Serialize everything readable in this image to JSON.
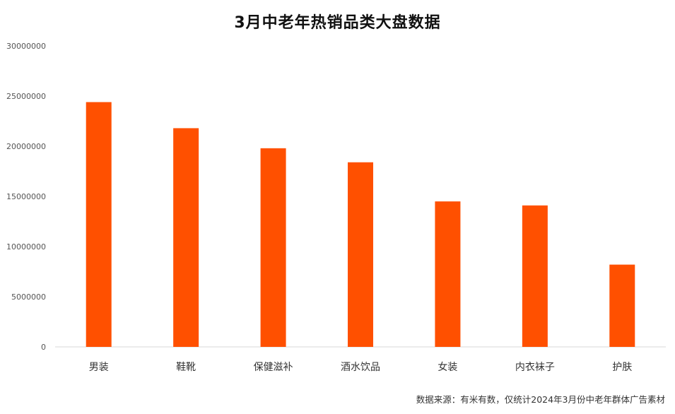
{
  "chart_data": {
    "type": "bar",
    "title": "3月中老年热销品类大盘数据",
    "xlabel": "",
    "ylabel": "",
    "categories": [
      "男装",
      "鞋靴",
      "保健滋补",
      "酒水饮品",
      "女装",
      "内衣袜子",
      "护肤"
    ],
    "values": [
      24400000,
      21800000,
      19800000,
      18400000,
      14500000,
      14100000,
      8200000
    ],
    "ylim": [
      0,
      30000000
    ],
    "yticks": [
      "0",
      "5000000",
      "10000000",
      "15000000",
      "20000000",
      "25000000",
      "30000000"
    ],
    "grid": false,
    "legend": "none",
    "bar_color": "#FF5000"
  },
  "source_note": "数据来源：有米有数，仅统计2024年3月份中老年群体广告素材"
}
